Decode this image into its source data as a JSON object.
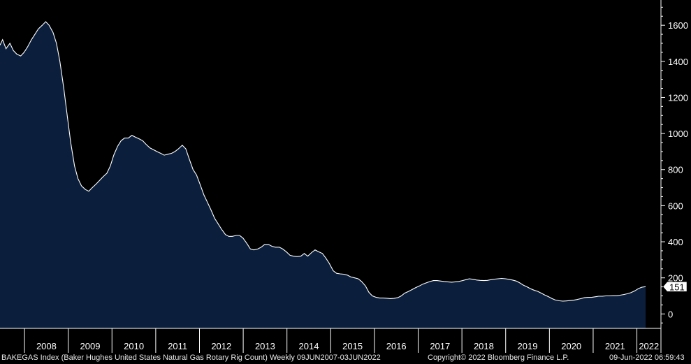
{
  "chart_data": {
    "type": "area",
    "description_text": "BAKEGAS Index (Baker Hughes United States Natural Gas Rotary Rig Count)  Weekly 09JUN2007-03JUN2022",
    "copyright": "Copyright© 2022 Bloomberg Finance L.P.",
    "timestamp": "09-Jun-2022 06:59:43",
    "last_value_label": "151",
    "ylim": [
      -80,
      1740
    ],
    "yticks": [
      0,
      200,
      400,
      600,
      800,
      1000,
      1200,
      1400,
      1600
    ],
    "xlim": [
      2007.44,
      2022.55
    ],
    "year_labels": [
      "2008",
      "2009",
      "2010",
      "2011",
      "2012",
      "2013",
      "2014",
      "2015",
      "2016",
      "2017",
      "2018",
      "2019",
      "2020",
      "2021",
      "2022"
    ],
    "colors": {
      "fill": "#0b1f3d",
      "line": "#ffffff",
      "background": "#000000",
      "axis": "#ffffff"
    },
    "points": [
      [
        2007.44,
        1490
      ],
      [
        2007.5,
        1520
      ],
      [
        2007.58,
        1470
      ],
      [
        2007.67,
        1500
      ],
      [
        2007.75,
        1460
      ],
      [
        2007.83,
        1440
      ],
      [
        2007.92,
        1430
      ],
      [
        2008.0,
        1450
      ],
      [
        2008.08,
        1480
      ],
      [
        2008.17,
        1520
      ],
      [
        2008.25,
        1550
      ],
      [
        2008.33,
        1580
      ],
      [
        2008.42,
        1600
      ],
      [
        2008.5,
        1620
      ],
      [
        2008.58,
        1600
      ],
      [
        2008.67,
        1560
      ],
      [
        2008.75,
        1500
      ],
      [
        2008.83,
        1400
      ],
      [
        2008.92,
        1250
      ],
      [
        2009.0,
        1100
      ],
      [
        2009.08,
        950
      ],
      [
        2009.17,
        820
      ],
      [
        2009.25,
        750
      ],
      [
        2009.33,
        710
      ],
      [
        2009.42,
        690
      ],
      [
        2009.5,
        680
      ],
      [
        2009.58,
        700
      ],
      [
        2009.67,
        720
      ],
      [
        2009.75,
        740
      ],
      [
        2009.83,
        760
      ],
      [
        2009.92,
        780
      ],
      [
        2010.0,
        820
      ],
      [
        2010.08,
        880
      ],
      [
        2010.17,
        930
      ],
      [
        2010.25,
        960
      ],
      [
        2010.33,
        975
      ],
      [
        2010.42,
        975
      ],
      [
        2010.5,
        990
      ],
      [
        2010.58,
        980
      ],
      [
        2010.67,
        970
      ],
      [
        2010.75,
        960
      ],
      [
        2010.83,
        940
      ],
      [
        2010.92,
        920
      ],
      [
        2011.0,
        910
      ],
      [
        2011.08,
        900
      ],
      [
        2011.17,
        890
      ],
      [
        2011.25,
        880
      ],
      [
        2011.33,
        885
      ],
      [
        2011.42,
        890
      ],
      [
        2011.5,
        900
      ],
      [
        2011.58,
        915
      ],
      [
        2011.67,
        935
      ],
      [
        2011.75,
        915
      ],
      [
        2011.83,
        860
      ],
      [
        2011.92,
        800
      ],
      [
        2012.0,
        770
      ],
      [
        2012.08,
        720
      ],
      [
        2012.17,
        660
      ],
      [
        2012.25,
        620
      ],
      [
        2012.33,
        580
      ],
      [
        2012.42,
        530
      ],
      [
        2012.5,
        500
      ],
      [
        2012.58,
        470
      ],
      [
        2012.67,
        440
      ],
      [
        2012.75,
        430
      ],
      [
        2012.83,
        430
      ],
      [
        2012.92,
        435
      ],
      [
        2013.0,
        435
      ],
      [
        2013.08,
        420
      ],
      [
        2013.17,
        390
      ],
      [
        2013.25,
        360
      ],
      [
        2013.33,
        355
      ],
      [
        2013.42,
        360
      ],
      [
        2013.5,
        370
      ],
      [
        2013.58,
        385
      ],
      [
        2013.67,
        385
      ],
      [
        2013.75,
        375
      ],
      [
        2013.83,
        370
      ],
      [
        2013.92,
        370
      ],
      [
        2014.0,
        360
      ],
      [
        2014.08,
        345
      ],
      [
        2014.17,
        325
      ],
      [
        2014.25,
        320
      ],
      [
        2014.33,
        318
      ],
      [
        2014.42,
        320
      ],
      [
        2014.5,
        335
      ],
      [
        2014.58,
        320
      ],
      [
        2014.67,
        340
      ],
      [
        2014.75,
        355
      ],
      [
        2014.83,
        345
      ],
      [
        2014.92,
        335
      ],
      [
        2015.0,
        310
      ],
      [
        2015.08,
        280
      ],
      [
        2015.17,
        240
      ],
      [
        2015.25,
        225
      ],
      [
        2015.33,
        222
      ],
      [
        2015.42,
        220
      ],
      [
        2015.5,
        215
      ],
      [
        2015.58,
        205
      ],
      [
        2015.67,
        200
      ],
      [
        2015.75,
        195
      ],
      [
        2015.83,
        180
      ],
      [
        2015.92,
        155
      ],
      [
        2016.0,
        120
      ],
      [
        2016.08,
        100
      ],
      [
        2016.17,
        92
      ],
      [
        2016.25,
        88
      ],
      [
        2016.33,
        88
      ],
      [
        2016.42,
        87
      ],
      [
        2016.5,
        85
      ],
      [
        2016.58,
        86
      ],
      [
        2016.67,
        90
      ],
      [
        2016.75,
        100
      ],
      [
        2016.83,
        115
      ],
      [
        2016.92,
        125
      ],
      [
        2017.0,
        135
      ],
      [
        2017.08,
        145
      ],
      [
        2017.17,
        155
      ],
      [
        2017.25,
        165
      ],
      [
        2017.33,
        172
      ],
      [
        2017.42,
        180
      ],
      [
        2017.5,
        185
      ],
      [
        2017.58,
        185
      ],
      [
        2017.67,
        182
      ],
      [
        2017.75,
        180
      ],
      [
        2017.83,
        178
      ],
      [
        2017.92,
        176
      ],
      [
        2018.0,
        178
      ],
      [
        2018.08,
        180
      ],
      [
        2018.17,
        185
      ],
      [
        2018.25,
        190
      ],
      [
        2018.33,
        195
      ],
      [
        2018.42,
        192
      ],
      [
        2018.5,
        188
      ],
      [
        2018.58,
        186
      ],
      [
        2018.67,
        185
      ],
      [
        2018.75,
        186
      ],
      [
        2018.83,
        190
      ],
      [
        2018.92,
        193
      ],
      [
        2019.0,
        195
      ],
      [
        2019.08,
        197
      ],
      [
        2019.17,
        195
      ],
      [
        2019.25,
        192
      ],
      [
        2019.33,
        188
      ],
      [
        2019.42,
        182
      ],
      [
        2019.5,
        172
      ],
      [
        2019.58,
        160
      ],
      [
        2019.67,
        150
      ],
      [
        2019.75,
        140
      ],
      [
        2019.83,
        132
      ],
      [
        2019.92,
        125
      ],
      [
        2020.0,
        115
      ],
      [
        2020.08,
        105
      ],
      [
        2020.17,
        95
      ],
      [
        2020.25,
        85
      ],
      [
        2020.33,
        77
      ],
      [
        2020.42,
        73
      ],
      [
        2020.5,
        71
      ],
      [
        2020.58,
        72
      ],
      [
        2020.67,
        74
      ],
      [
        2020.75,
        76
      ],
      [
        2020.83,
        80
      ],
      [
        2020.92,
        85
      ],
      [
        2021.0,
        90
      ],
      [
        2021.08,
        92
      ],
      [
        2021.17,
        92
      ],
      [
        2021.25,
        95
      ],
      [
        2021.33,
        98
      ],
      [
        2021.42,
        98
      ],
      [
        2021.5,
        100
      ],
      [
        2021.58,
        100
      ],
      [
        2021.67,
        101
      ],
      [
        2021.75,
        101
      ],
      [
        2021.83,
        104
      ],
      [
        2021.92,
        108
      ],
      [
        2022.0,
        112
      ],
      [
        2022.08,
        118
      ],
      [
        2022.17,
        128
      ],
      [
        2022.25,
        140
      ],
      [
        2022.33,
        148
      ],
      [
        2022.42,
        151
      ]
    ]
  }
}
